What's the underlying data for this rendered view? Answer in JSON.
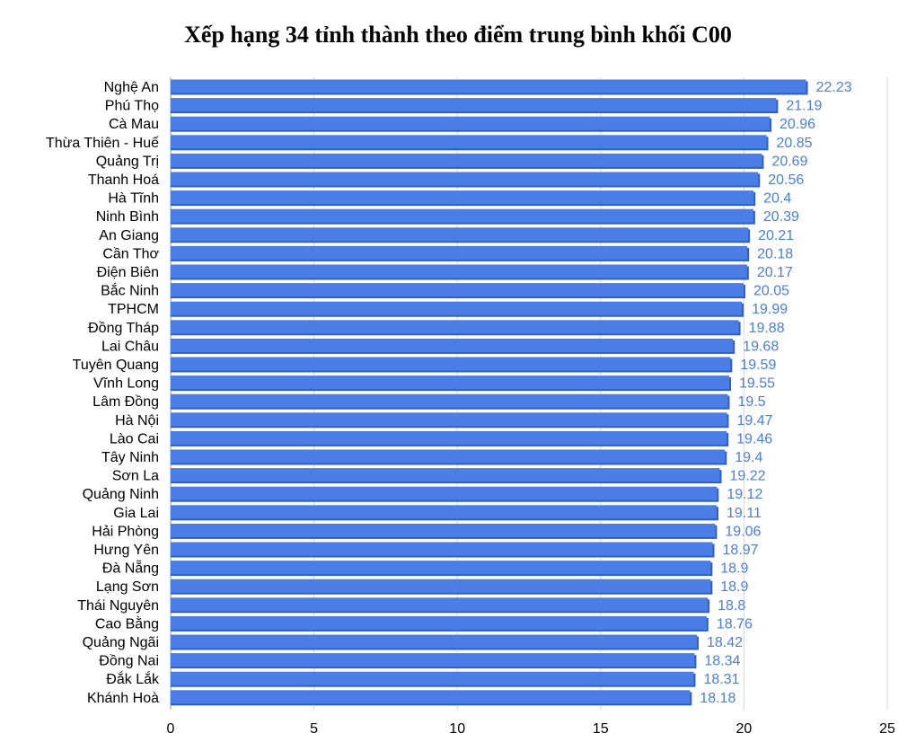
{
  "chart_data": {
    "type": "bar",
    "orientation": "horizontal",
    "title": "Xếp hạng 34 tỉnh thành theo điểm trung bình khối C00",
    "categories": [
      "Nghệ An",
      "Phú Thọ",
      "Cà Mau",
      "Thừa Thiên - Huế",
      "Quảng Trị",
      "Thanh Hoá",
      "Hà Tĩnh",
      "Ninh Bình",
      "An Giang",
      "Cần Thơ",
      "Điện Biên",
      "Bắc Ninh",
      "TPHCM",
      "Đồng Tháp",
      "Lai Châu",
      "Tuyên Quang",
      "Vĩnh Long",
      "Lâm Đồng",
      "Hà Nội",
      "Lào Cai",
      "Tây Ninh",
      "Sơn La",
      "Quảng Ninh",
      "Gia Lai",
      "Hải Phòng",
      "Hưng Yên",
      "Đà Nẵng",
      "Lạng Sơn",
      "Thái Nguyên",
      "Cao Bằng",
      "Quảng Ngãi",
      "Đồng Nai",
      "Đắk Lắk",
      "Khánh Hoà"
    ],
    "values": [
      22.23,
      21.19,
      20.96,
      20.85,
      20.69,
      20.56,
      20.4,
      20.39,
      20.21,
      20.18,
      20.17,
      20.05,
      19.99,
      19.88,
      19.68,
      19.59,
      19.55,
      19.5,
      19.47,
      19.46,
      19.4,
      19.22,
      19.12,
      19.11,
      19.06,
      18.97,
      18.9,
      18.9,
      18.8,
      18.76,
      18.42,
      18.34,
      18.31,
      18.18
    ],
    "value_labels": [
      "22.23",
      "21.19",
      "20.96",
      "20.85",
      "20.69",
      "20.56",
      "20.4",
      "20.39",
      "20.21",
      "20.18",
      "20.17",
      "20.05",
      "19.99",
      "19.88",
      "19.68",
      "19.59",
      "19.55",
      "19.5",
      "19.47",
      "19.46",
      "19.4",
      "19.22",
      "19.12",
      "19.11",
      "19.06",
      "18.97",
      "18.9",
      "18.9",
      "18.8",
      "18.76",
      "18.42",
      "18.34",
      "18.31",
      "18.18"
    ],
    "xticks": [
      "0",
      "5",
      "10",
      "15",
      "20",
      "25"
    ],
    "xlim": [
      0,
      25
    ],
    "grid": "vertical",
    "legend": "none",
    "colors": {
      "bar": "#4a7ee6",
      "bar_shade": "#2f5fc4",
      "value_label": "#4a7ee6",
      "grid": "#d9d9d9"
    }
  }
}
